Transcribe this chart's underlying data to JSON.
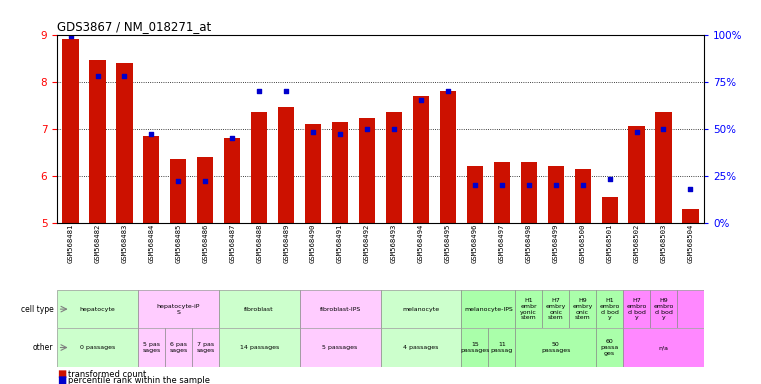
{
  "title": "GDS3867 / NM_018271_at",
  "samples": [
    "GSM568481",
    "GSM568482",
    "GSM568483",
    "GSM568484",
    "GSM568485",
    "GSM568486",
    "GSM568487",
    "GSM568488",
    "GSM568489",
    "GSM568490",
    "GSM568491",
    "GSM568492",
    "GSM568493",
    "GSM568494",
    "GSM568495",
    "GSM568496",
    "GSM568497",
    "GSM568498",
    "GSM568499",
    "GSM568500",
    "GSM568501",
    "GSM568502",
    "GSM568503",
    "GSM568504"
  ],
  "transformed_count": [
    8.9,
    8.45,
    8.4,
    6.85,
    6.35,
    6.4,
    6.8,
    7.35,
    7.45,
    7.1,
    7.15,
    7.22,
    7.35,
    7.7,
    7.8,
    6.2,
    6.3,
    6.3,
    6.2,
    6.15,
    5.55,
    7.05,
    7.35,
    5.3
  ],
  "percentile": [
    99,
    78,
    78,
    47,
    22,
    22,
    45,
    70,
    70,
    48,
    47,
    50,
    50,
    65,
    70,
    20,
    20,
    20,
    20,
    20,
    23,
    48,
    50,
    18
  ],
  "ylim_left": [
    5,
    9
  ],
  "ylim_right": [
    0,
    100
  ],
  "yticks_left": [
    5,
    6,
    7,
    8,
    9
  ],
  "yticks_right": [
    0,
    25,
    50,
    75,
    100
  ],
  "ytick_right_labels": [
    "0%",
    "25%",
    "50%",
    "75%",
    "100%"
  ],
  "bar_color": "#cc1100",
  "dot_color": "#0000cc",
  "bg_xtick": "#cccccc",
  "cell_type_groups": [
    {
      "label": "hepatocyte",
      "start": 0,
      "end": 2,
      "color": "#ccffcc"
    },
    {
      "label": "hepatocyte-iP\nS",
      "start": 3,
      "end": 5,
      "color": "#ffccff"
    },
    {
      "label": "fibroblast",
      "start": 6,
      "end": 8,
      "color": "#ccffcc"
    },
    {
      "label": "fibroblast-IPS",
      "start": 9,
      "end": 11,
      "color": "#ffccff"
    },
    {
      "label": "melanocyte",
      "start": 12,
      "end": 14,
      "color": "#ccffcc"
    },
    {
      "label": "melanocyte-IPS",
      "start": 15,
      "end": 16,
      "color": "#aaffaa"
    },
    {
      "label": "H1\nembr\nyonic\nstem",
      "start": 17,
      "end": 17,
      "color": "#aaffaa"
    },
    {
      "label": "H7\nembry\nonic\nstem",
      "start": 18,
      "end": 18,
      "color": "#aaffaa"
    },
    {
      "label": "H9\nembry\nonic\nstem",
      "start": 19,
      "end": 19,
      "color": "#aaffaa"
    },
    {
      "label": "H1\nembro\nd bod\ny",
      "start": 20,
      "end": 20,
      "color": "#aaffaa"
    },
    {
      "label": "H7\nembro\nd bod\ny",
      "start": 21,
      "end": 21,
      "color": "#ff88ff"
    },
    {
      "label": "H9\nembro\nd bod\ny",
      "start": 22,
      "end": 22,
      "color": "#ff88ff"
    },
    {
      "label": "",
      "start": 23,
      "end": 23,
      "color": "#ff88ff"
    }
  ],
  "other_groups": [
    {
      "label": "0 passages",
      "start": 0,
      "end": 2,
      "color": "#ccffcc"
    },
    {
      "label": "5 pas\nsages",
      "start": 3,
      "end": 3,
      "color": "#ffccff"
    },
    {
      "label": "6 pas\nsages",
      "start": 4,
      "end": 4,
      "color": "#ffccff"
    },
    {
      "label": "7 pas\nsages",
      "start": 5,
      "end": 5,
      "color": "#ffccff"
    },
    {
      "label": "14 passages",
      "start": 6,
      "end": 8,
      "color": "#ccffcc"
    },
    {
      "label": "5 passages",
      "start": 9,
      "end": 11,
      "color": "#ffccff"
    },
    {
      "label": "4 passages",
      "start": 12,
      "end": 14,
      "color": "#ccffcc"
    },
    {
      "label": "15\npassages",
      "start": 15,
      "end": 15,
      "color": "#aaffaa"
    },
    {
      "label": "11\npassag",
      "start": 16,
      "end": 16,
      "color": "#aaffaa"
    },
    {
      "label": "50\npassages",
      "start": 17,
      "end": 19,
      "color": "#aaffaa"
    },
    {
      "label": "60\npassa\nges",
      "start": 20,
      "end": 20,
      "color": "#aaffaa"
    },
    {
      "label": "n/a",
      "start": 21,
      "end": 23,
      "color": "#ff88ff"
    }
  ],
  "legend_items": [
    {
      "label": "transformed count",
      "color": "#cc1100"
    },
    {
      "label": "percentile rank within the sample",
      "color": "#0000cc"
    }
  ]
}
